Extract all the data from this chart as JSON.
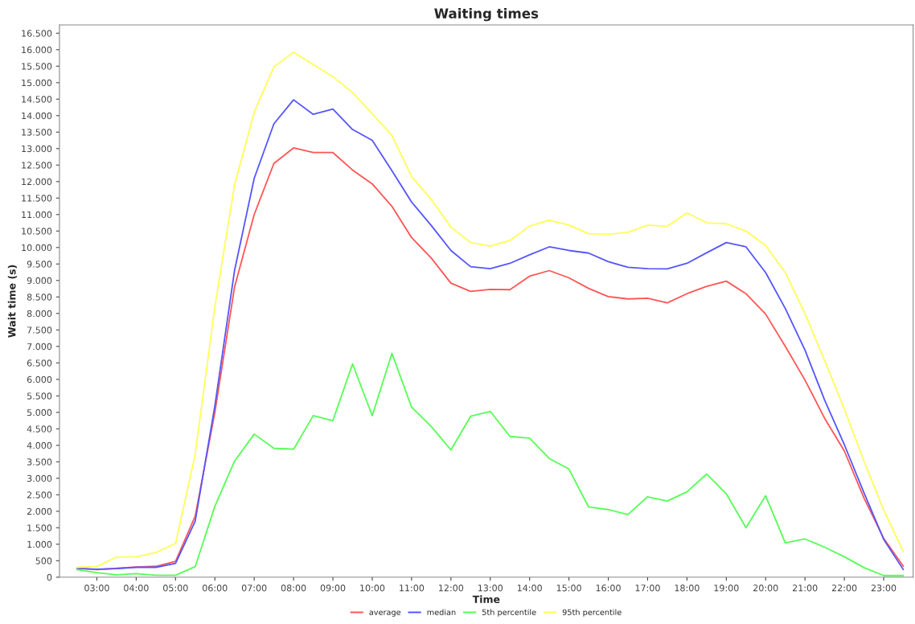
{
  "chart_data": {
    "type": "line",
    "title": "Waiting times",
    "xlabel": "Time",
    "ylabel": "Wait time (s)",
    "x": [
      2.5,
      3,
      3.5,
      4,
      4.5,
      5,
      5.5,
      6,
      6.5,
      7,
      7.5,
      8,
      8.5,
      9,
      9.5,
      10,
      10.5,
      11,
      11.5,
      12,
      12.5,
      13,
      13.5,
      14,
      14.5,
      15,
      15.5,
      16,
      16.5,
      17,
      17.5,
      18,
      18.5,
      19,
      19.5,
      20,
      20.5,
      21,
      21.5,
      22,
      22.5,
      23,
      23.5
    ],
    "series": [
      {
        "name": "average",
        "color": "#ff5555",
        "values": [
          280,
          230,
          270,
          310,
          330,
          480,
          1850,
          5000,
          8800,
          11000,
          12550,
          13020,
          12880,
          12880,
          12350,
          11930,
          11250,
          10300,
          9680,
          8920,
          8670,
          8730,
          8720,
          9130,
          9300,
          9080,
          8760,
          8510,
          8440,
          8460,
          8320,
          8600,
          8820,
          8980,
          8600,
          7980,
          7000,
          5980,
          4820,
          3830,
          2400,
          1180,
          330
        ]
      },
      {
        "name": "median",
        "color": "#5555ff",
        "values": [
          260,
          240,
          260,
          300,
          300,
          420,
          1700,
          5200,
          9300,
          12100,
          13750,
          14480,
          14040,
          14200,
          13580,
          13250,
          12330,
          11380,
          10670,
          9910,
          9420,
          9360,
          9520,
          9780,
          10020,
          9910,
          9830,
          9570,
          9400,
          9360,
          9350,
          9520,
          9840,
          10150,
          10020,
          9240,
          8150,
          6890,
          5370,
          4020,
          2560,
          1150,
          230
        ]
      },
      {
        "name": "5th percentile",
        "color": "#55ff55",
        "values": [
          230,
          140,
          70,
          110,
          60,
          60,
          320,
          2150,
          3520,
          4340,
          3910,
          3880,
          4900,
          4750,
          6470,
          4900,
          6790,
          5160,
          4570,
          3860,
          4880,
          5030,
          4270,
          4220,
          3600,
          3280,
          2130,
          2050,
          1900,
          2440,
          2310,
          2590,
          3130,
          2530,
          1500,
          2470,
          1040,
          1160,
          910,
          620,
          290,
          50,
          50
        ]
      },
      {
        "name": "95th percentile",
        "color": "#ffff55",
        "values": [
          300,
          320,
          610,
          620,
          750,
          1020,
          3730,
          8200,
          11900,
          14100,
          15480,
          15920,
          15550,
          15180,
          14700,
          14060,
          13400,
          12150,
          11460,
          10620,
          10150,
          10040,
          10210,
          10650,
          10830,
          10680,
          10420,
          10400,
          10460,
          10680,
          10640,
          11050,
          10750,
          10720,
          10500,
          10060,
          9240,
          7990,
          6570,
          5100,
          3520,
          2040,
          770
        ]
      }
    ],
    "xlim": [
      2.05,
      23.75
    ],
    "xticks": [
      {
        "value": 3,
        "label": "03:00"
      },
      {
        "value": 4,
        "label": "04:00"
      },
      {
        "value": 5,
        "label": "05:00"
      },
      {
        "value": 6,
        "label": "06:00"
      },
      {
        "value": 7,
        "label": "07:00"
      },
      {
        "value": 8,
        "label": "08:00"
      },
      {
        "value": 9,
        "label": "09:00"
      },
      {
        "value": 10,
        "label": "10:00"
      },
      {
        "value": 11,
        "label": "11:00"
      },
      {
        "value": 12,
        "label": "12:00"
      },
      {
        "value": 13,
        "label": "13:00"
      },
      {
        "value": 14,
        "label": "14:00"
      },
      {
        "value": 15,
        "label": "15:00"
      },
      {
        "value": 16,
        "label": "16:00"
      },
      {
        "value": 17,
        "label": "17:00"
      },
      {
        "value": 18,
        "label": "18:00"
      },
      {
        "value": 19,
        "label": "19:00"
      },
      {
        "value": 20,
        "label": "20:00"
      },
      {
        "value": 21,
        "label": "21:00"
      },
      {
        "value": 22,
        "label": "22:00"
      },
      {
        "value": 23,
        "label": "23:00"
      }
    ],
    "ylim": [
      0,
      16750
    ],
    "yticks": [
      0,
      {
        "value": 500,
        "label": "500"
      },
      {
        "value": 1000,
        "label": "1.000"
      },
      {
        "value": 1500,
        "label": "1.500"
      },
      {
        "value": 2000,
        "label": "2.000"
      },
      {
        "value": 2500,
        "label": "2.500"
      },
      {
        "value": 3000,
        "label": "3.000"
      },
      {
        "value": 3500,
        "label": "3.500"
      },
      {
        "value": 4000,
        "label": "4.000"
      },
      {
        "value": 4500,
        "label": "4.500"
      },
      {
        "value": 5000,
        "label": "5.000"
      },
      {
        "value": 5500,
        "label": "5.500"
      },
      {
        "value": 6000,
        "label": "6.000"
      },
      {
        "value": 6500,
        "label": "6.500"
      },
      {
        "value": 7000,
        "label": "7.000"
      },
      {
        "value": 7500,
        "label": "7.500"
      },
      {
        "value": 8000,
        "label": "8.000"
      },
      {
        "value": 8500,
        "label": "8.500"
      },
      {
        "value": 9000,
        "label": "9.000"
      },
      {
        "value": 9500,
        "label": "9.500"
      },
      {
        "value": 10000,
        "label": "10.000"
      },
      {
        "value": 10500,
        "label": "10.500"
      },
      {
        "value": 11000,
        "label": "11.000"
      },
      {
        "value": 11500,
        "label": "11.500"
      },
      {
        "value": 12000,
        "label": "12.000"
      },
      {
        "value": 12500,
        "label": "12.500"
      },
      {
        "value": 13000,
        "label": "13.000"
      },
      {
        "value": 13500,
        "label": "13.500"
      },
      {
        "value": 14000,
        "label": "14.000"
      },
      {
        "value": 14500,
        "label": "14.500"
      },
      {
        "value": 15000,
        "label": "15.000"
      },
      {
        "value": 15500,
        "label": "15.500"
      },
      {
        "value": 16000,
        "label": "16.000"
      },
      {
        "value": 16500,
        "label": "16.500"
      }
    ],
    "grid": false,
    "legend": "bottom",
    "marker": "none",
    "line_style": "solid"
  }
}
